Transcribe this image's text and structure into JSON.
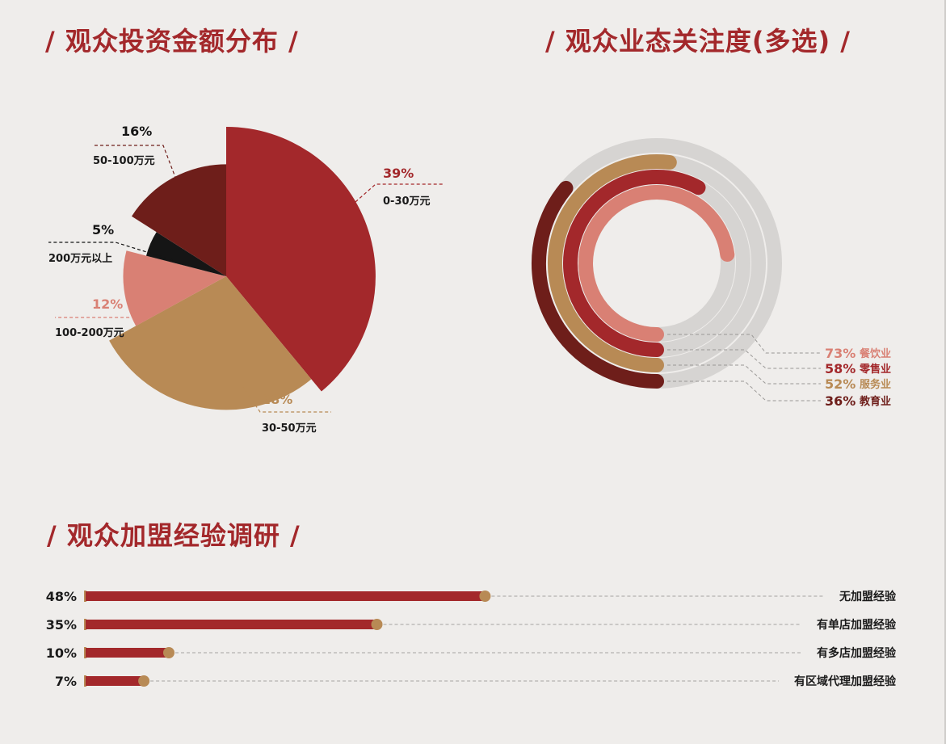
{
  "titles": {
    "invest": "/ 观众投资金额分布 /",
    "focus": "/ 观众业态关注度(多选) /",
    "experience": "/ 观众加盟经验调研 /"
  },
  "colors": {
    "dark_red": "#6e1e1a",
    "red": "#a3282b",
    "tan": "#b88a55",
    "salmon": "#d98074",
    "black": "#151515",
    "track": "#d6d4d2"
  },
  "chart_data": [
    {
      "type": "pie",
      "variant": "rose",
      "slices": [
        {
          "label": "0-30万元",
          "value": 39,
          "pct": "39%",
          "color": "#a3282b"
        },
        {
          "label": "30-50万元",
          "value": 28,
          "pct": "28%",
          "color": "#b88a55"
        },
        {
          "label": "100-200万元",
          "value": 12,
          "pct": "12%",
          "color": "#d98074"
        },
        {
          "label": "200万元以上",
          "value": 5,
          "pct": "5%",
          "color": "#151515"
        },
        {
          "label": "50-100万元",
          "value": 16,
          "pct": "16%",
          "color": "#6e1e1a"
        }
      ]
    },
    {
      "type": "radial_bar",
      "series": [
        {
          "label": "餐饮业",
          "value": 73,
          "pct": "73%",
          "color": "#d98074"
        },
        {
          "label": "零售业",
          "value": 58,
          "pct": "58%",
          "color": "#a3282b"
        },
        {
          "label": "服务业",
          "value": 52,
          "pct": "52%",
          "color": "#b88a55"
        },
        {
          "label": "教育业",
          "value": 36,
          "pct": "36%",
          "color": "#6e1e1a"
        }
      ]
    },
    {
      "type": "bar",
      "orientation": "horizontal",
      "bars": [
        {
          "label": "无加盟经验",
          "value": 48,
          "pct": "48%"
        },
        {
          "label": "有单店加盟经验",
          "value": 35,
          "pct": "35%"
        },
        {
          "label": "有多店加盟经验",
          "value": 10,
          "pct": "10%"
        },
        {
          "label": "有区域代理加盟经验",
          "value": 7,
          "pct": "7%"
        }
      ]
    }
  ]
}
